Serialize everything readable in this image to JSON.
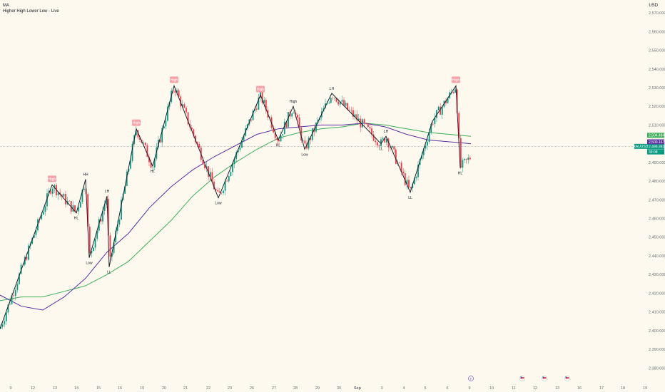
{
  "legend": {
    "line1": "MA",
    "line2": "Higher High Lower Low - Live"
  },
  "currency": "USD",
  "colors": {
    "up": "#089981",
    "down": "#f23645",
    "ma_purple": "#5b2fa0",
    "ma_green": "#3fae5a",
    "zigzag": "#1e222d",
    "badge": "#f7a1a8",
    "background": "#fdf9ee",
    "axis_text": "#6b6f79"
  },
  "chart_data": {
    "type": "candlestick",
    "symbol": "XAUUSD",
    "ylim": [
      2374,
      2575
    ],
    "y_ticks": [
      "2,380.000",
      "2,390.000",
      "2,400.000",
      "2,410.000",
      "2,420.000",
      "2,430.000",
      "2,440.000",
      "2,450.000",
      "2,460.000",
      "2,470.000",
      "2,480.000",
      "2,490.000",
      "2,500.000",
      "2,510.000",
      "2,520.000",
      "2,530.000",
      "2,540.000",
      "2,550.000",
      "2,560.000",
      "2,570.000"
    ],
    "x_ticks": [
      "9",
      "12",
      "13",
      "14",
      "15",
      "16",
      "19",
      "20",
      "21",
      "22",
      "23",
      "26",
      "27",
      "28",
      "29",
      "30",
      "Sep",
      "3",
      "4",
      "5",
      "6",
      "9",
      "10",
      "11",
      "12",
      "13",
      "16",
      "17",
      "18",
      "19"
    ],
    "zigzag": [
      [
        0,
        2401
      ],
      [
        73,
        2478
      ],
      [
        107,
        2463
      ],
      [
        120,
        2481
      ],
      [
        125,
        2439
      ],
      [
        150,
        2472
      ],
      [
        153,
        2434
      ],
      [
        191,
        2508
      ],
      [
        214,
        2488
      ],
      [
        244,
        2531
      ],
      [
        306,
        2471
      ],
      [
        365,
        2526
      ],
      [
        390,
        2502
      ],
      [
        411,
        2520
      ],
      [
        427,
        2497
      ],
      [
        465,
        2527
      ],
      [
        534,
        2500
      ],
      [
        541,
        2504
      ],
      [
        575,
        2474
      ],
      [
        606,
        2512
      ],
      [
        639,
        2531
      ],
      [
        645,
        2487
      ]
    ],
    "pivots": [
      {
        "text": "High",
        "x": 73,
        "y": 2478,
        "pos": "badge"
      },
      {
        "text": "HL",
        "x": 107,
        "y": 2463,
        "pos": "below"
      },
      {
        "text": "HH",
        "x": 120,
        "y": 2481,
        "pos": "above"
      },
      {
        "text": "Low",
        "x": 125,
        "y": 2439,
        "pos": "below"
      },
      {
        "text": "LH",
        "x": 150,
        "y": 2472,
        "pos": "above"
      },
      {
        "text": "LL",
        "x": 153,
        "y": 2434,
        "pos": "below"
      },
      {
        "text": "High",
        "x": 191,
        "y": 2508,
        "pos": "badge"
      },
      {
        "text": "HL",
        "x": 214,
        "y": 2488,
        "pos": "below"
      },
      {
        "text": "High",
        "x": 244,
        "y": 2531,
        "pos": "badge"
      },
      {
        "text": "Low",
        "x": 306,
        "y": 2471,
        "pos": "below"
      },
      {
        "text": "High",
        "x": 365,
        "y": 2526,
        "pos": "badge"
      },
      {
        "text": "HL",
        "x": 390,
        "y": 2502,
        "pos": "below"
      },
      {
        "text": "High",
        "x": 411,
        "y": 2520,
        "pos": "above"
      },
      {
        "text": "Low",
        "x": 427,
        "y": 2497,
        "pos": "below"
      },
      {
        "text": "LH",
        "x": 465,
        "y": 2527,
        "pos": "above"
      },
      {
        "text": "LL",
        "x": 534,
        "y": 2500,
        "pos": "below"
      },
      {
        "text": "LH",
        "x": 541,
        "y": 2504,
        "pos": "above"
      },
      {
        "text": "LL",
        "x": 575,
        "y": 2474,
        "pos": "below"
      },
      {
        "text": "High",
        "x": 639,
        "y": 2531,
        "pos": "badge"
      },
      {
        "text": "HL",
        "x": 645,
        "y": 2487,
        "pos": "below"
      }
    ],
    "ma_purple": [
      [
        0,
        2419
      ],
      [
        30,
        2413
      ],
      [
        60,
        2411
      ],
      [
        90,
        2418
      ],
      [
        120,
        2428
      ],
      [
        150,
        2442
      ],
      [
        180,
        2452
      ],
      [
        210,
        2466
      ],
      [
        240,
        2477
      ],
      [
        270,
        2486
      ],
      [
        300,
        2493
      ],
      [
        330,
        2499
      ],
      [
        360,
        2505
      ],
      [
        390,
        2508
      ],
      [
        420,
        2509
      ],
      [
        450,
        2510
      ],
      [
        480,
        2510
      ],
      [
        510,
        2511
      ],
      [
        540,
        2509
      ],
      [
        570,
        2505
      ],
      [
        600,
        2502
      ],
      [
        630,
        2501
      ],
      [
        660,
        2500
      ]
    ],
    "ma_green": [
      [
        0,
        2416
      ],
      [
        30,
        2418
      ],
      [
        60,
        2418
      ],
      [
        90,
        2421
      ],
      [
        120,
        2424
      ],
      [
        150,
        2430
      ],
      [
        180,
        2437
      ],
      [
        210,
        2448
      ],
      [
        240,
        2459
      ],
      [
        270,
        2472
      ],
      [
        300,
        2482
      ],
      [
        330,
        2490
      ],
      [
        360,
        2497
      ],
      [
        390,
        2503
      ],
      [
        420,
        2506
      ],
      [
        450,
        2508
      ],
      [
        480,
        2509
      ],
      [
        510,
        2511
      ],
      [
        540,
        2510
      ],
      [
        570,
        2508
      ],
      [
        600,
        2506
      ],
      [
        630,
        2505
      ],
      [
        660,
        2504
      ]
    ],
    "price_boxes": [
      {
        "label": "2,504.484",
        "value": 2504.5,
        "color": "#3fae5a"
      },
      {
        "label": "2,500.167",
        "value": 2501.0,
        "color": "#5b2fa0"
      },
      {
        "label": "2,499.393",
        "value": 2498.4,
        "color": "#089981"
      },
      {
        "label": "XAUUSD",
        "value": 2498.6,
        "color": "#089981",
        "side": "left"
      },
      {
        "label": "39:08",
        "value": 2495.6,
        "color": "#089981"
      }
    ],
    "grid": false,
    "legend_position": "top-left"
  }
}
